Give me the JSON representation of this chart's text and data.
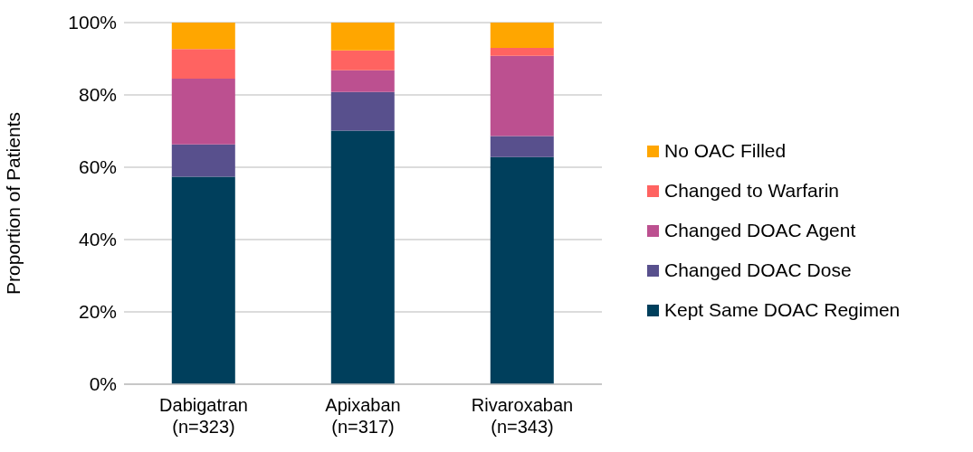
{
  "chart_data": {
    "type": "bar",
    "stacked": true,
    "ylabel": "Proportion of Patients",
    "categories": [
      "Dabigatran (n=323)",
      "Apixaban (n=317)",
      "Rivaroxaban (n=343)"
    ],
    "series": [
      {
        "name": "Kept Same DOAC Regimen",
        "color": "#003f5c",
        "values": [
          57.4,
          70.1,
          62.8
        ]
      },
      {
        "name": "Changed DOAC Dose",
        "color": "#58508d",
        "values": [
          8.9,
          10.7,
          5.8
        ]
      },
      {
        "name": "Changed DOAC Agent",
        "color": "#bc5090",
        "values": [
          18.2,
          6.0,
          22.2
        ]
      },
      {
        "name": "Changed to Warfarin",
        "color": "#ff6361",
        "values": [
          8.2,
          5.5,
          2.2
        ]
      },
      {
        "name": "No OAC Filled",
        "color": "#ffa600",
        "values": [
          7.3,
          7.7,
          7.0
        ]
      }
    ],
    "ylim": [
      0,
      100
    ],
    "yticks": [
      {
        "value": 0,
        "label": "0%"
      },
      {
        "value": 20,
        "label": "20%"
      },
      {
        "value": 40,
        "label": "40%"
      },
      {
        "value": 60,
        "label": "60%"
      },
      {
        "value": 80,
        "label": "80%"
      },
      {
        "value": 100,
        "label": "100%"
      }
    ],
    "grid": "y",
    "legend": "right"
  }
}
